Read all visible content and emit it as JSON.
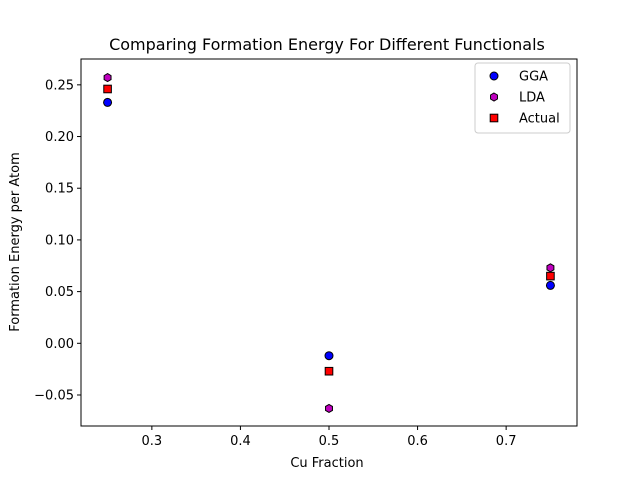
{
  "chart_data": {
    "type": "scatter",
    "title": "Comparing Formation Energy For Different Functionals",
    "xlabel": "Cu Fraction",
    "ylabel": "Formation Energy per Atom",
    "xlim": [
      0.22,
      0.78
    ],
    "ylim": [
      -0.08,
      0.275
    ],
    "xticks": [
      {
        "value": 0.3,
        "label": "0.3"
      },
      {
        "value": 0.4,
        "label": "0.4"
      },
      {
        "value": 0.5,
        "label": "0.5"
      },
      {
        "value": 0.6,
        "label": "0.6"
      },
      {
        "value": 0.7,
        "label": "0.7"
      }
    ],
    "yticks": [
      {
        "value": 0.25,
        "label": "0.25"
      },
      {
        "value": 0.2,
        "label": "0.20"
      },
      {
        "value": 0.15,
        "label": "0.15"
      },
      {
        "value": 0.1,
        "label": "0.10"
      },
      {
        "value": 0.05,
        "label": "0.05"
      },
      {
        "value": 0.0,
        "label": "0.00"
      },
      {
        "value": -0.05,
        "label": "−0.05"
      }
    ],
    "grid": false,
    "legend_position": "top-right",
    "series": [
      {
        "name": "GGA",
        "marker": "circle",
        "color": "#0000ff",
        "x": [
          0.25,
          0.5,
          0.75
        ],
        "y": [
          0.233,
          -0.012,
          0.056
        ]
      },
      {
        "name": "LDA",
        "marker": "hexagon",
        "color": "#bf00bf",
        "x": [
          0.25,
          0.5,
          0.75
        ],
        "y": [
          0.257,
          -0.063,
          0.073
        ]
      },
      {
        "name": "Actual",
        "marker": "square",
        "color": "#ff0000",
        "x": [
          0.25,
          0.5,
          0.75
        ],
        "y": [
          0.246,
          -0.027,
          0.065
        ]
      }
    ]
  }
}
